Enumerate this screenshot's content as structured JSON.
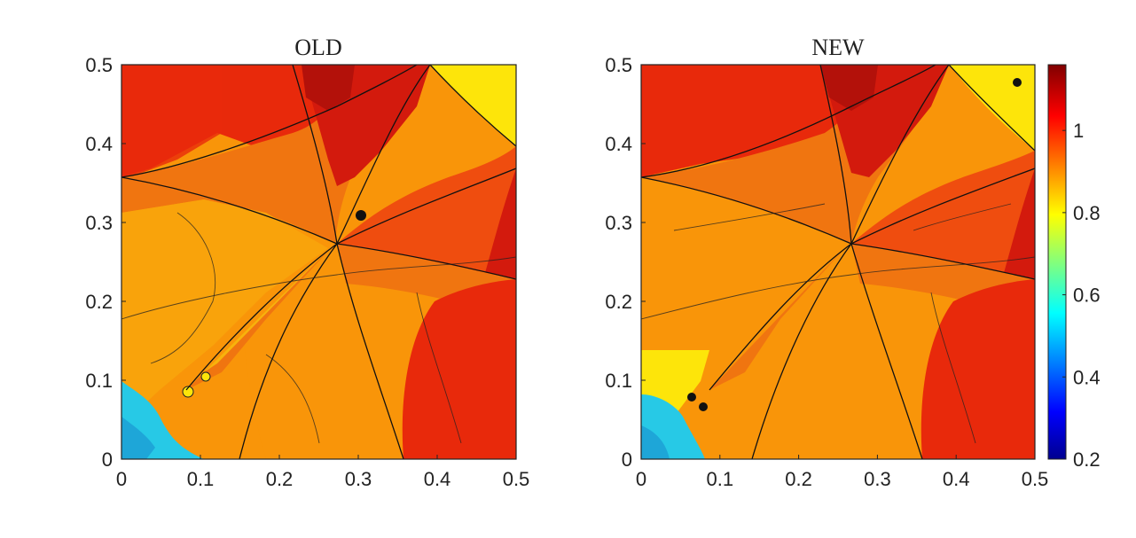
{
  "chart_data": [
    {
      "type": "heatmap",
      "title": "OLD",
      "xlabel": "",
      "ylabel": "",
      "xlim": [
        0,
        0.5
      ],
      "ylim": [
        0,
        0.5
      ],
      "x_ticks": [
        "0",
        "0.1",
        "0.2",
        "0.3",
        "0.4",
        "0.5"
      ],
      "y_ticks": [
        "0",
        "0.1",
        "0.2",
        "0.3",
        "0.4",
        "0.5"
      ]
    },
    {
      "type": "heatmap",
      "title": "NEW",
      "xlabel": "",
      "ylabel": "",
      "xlim": [
        0,
        0.5
      ],
      "ylim": [
        0,
        0.5
      ],
      "x_ticks": [
        "0",
        "0.1",
        "0.2",
        "0.3",
        "0.4",
        "0.5"
      ],
      "y_ticks": [
        "0",
        "0.1",
        "0.2",
        "0.3",
        "0.4",
        "0.5"
      ]
    }
  ],
  "colorbar": {
    "range": [
      0.2,
      1.16
    ],
    "ticks": [
      "0.2",
      "0.4",
      "0.6",
      "0.8",
      "1"
    ],
    "colormap": "jet",
    "colors": [
      "#00008f",
      "#0000ff",
      "#00ffff",
      "#ffff00",
      "#ff0000",
      "#800000"
    ]
  },
  "colors": {
    "dark_red": "#d31a0d",
    "red": "#e8290b",
    "red_orange": "#ef4d0f",
    "orange": "#f07510",
    "light_orange": "#f99509",
    "amber": "#f9a30b",
    "yellow": "#fde50a",
    "cyan": "#27c9e6",
    "deep_red": "#b3110a"
  }
}
